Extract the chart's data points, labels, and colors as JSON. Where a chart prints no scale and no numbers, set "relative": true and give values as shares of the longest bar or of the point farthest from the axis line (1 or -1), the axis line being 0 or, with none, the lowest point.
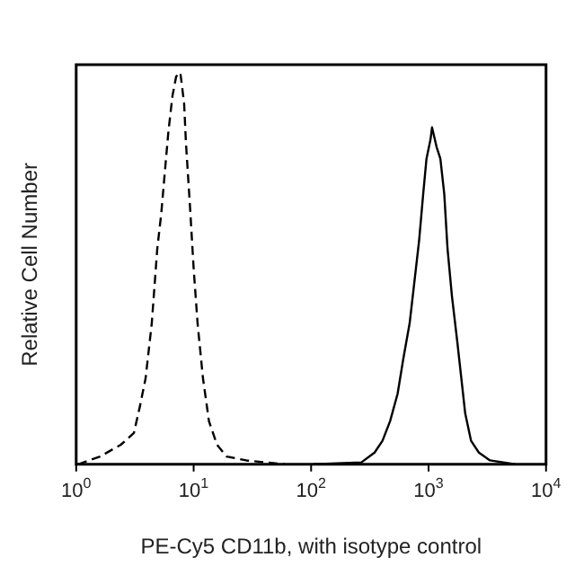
{
  "chart_data": {
    "type": "line",
    "relative": true,
    "xlabel": "PE-Cy5 CD11b, with isotype control",
    "ylabel": "Relative Cell Number",
    "log": "x",
    "xlim": [
      1,
      10000
    ],
    "xticks": [
      {
        "value": 1,
        "label": "10$^{0}$"
      },
      {
        "value": 10,
        "label": "10$^{1}$"
      },
      {
        "value": 100,
        "label": "10$^{2}$"
      },
      {
        "value": 1000,
        "label": "10$^{3}$"
      },
      {
        "value": 10000,
        "label": "10$^{4}$"
      }
    ],
    "grid": false,
    "legend": false,
    "marker": "none",
    "series": [
      {
        "color": "#000000",
        "line_style": "dashed",
        "x": [
          1.04,
          1.6,
          2.4,
          3.1,
          3.5,
          3.9,
          4.4,
          4.9,
          5.3,
          5.7,
          6.1,
          6.6,
          7.1,
          7.7,
          8.0,
          8.3,
          8.6,
          9.3,
          10,
          10.8,
          12,
          13.5,
          15.8,
          19,
          28,
          60
        ],
        "values": [
          0,
          0.02,
          0.05,
          0.08,
          0.15,
          0.22,
          0.36,
          0.55,
          0.64,
          0.75,
          0.85,
          0.94,
          0.99,
          1,
          0.96,
          0.92,
          0.82,
          0.66,
          0.5,
          0.36,
          0.22,
          0.11,
          0.05,
          0.02,
          0.01,
          0
        ]
      },
      {
        "color": "#000000",
        "line_style": "solid",
        "x": [
          104,
          268,
          347,
          405,
          470,
          545,
          610,
          690,
          767,
          830,
          900,
          960,
          1040,
          1070,
          1170,
          1260,
          1360,
          1450,
          1580,
          1760,
          1900,
          2050,
          2300,
          2680,
          3330,
          5450
        ],
        "values": [
          0,
          0.005,
          0.03,
          0.06,
          0.11,
          0.18,
          0.27,
          0.36,
          0.48,
          0.57,
          0.69,
          0.78,
          0.83,
          0.86,
          0.81,
          0.78,
          0.69,
          0.55,
          0.43,
          0.31,
          0.22,
          0.13,
          0.06,
          0.03,
          0.01,
          0
        ]
      }
    ]
  }
}
